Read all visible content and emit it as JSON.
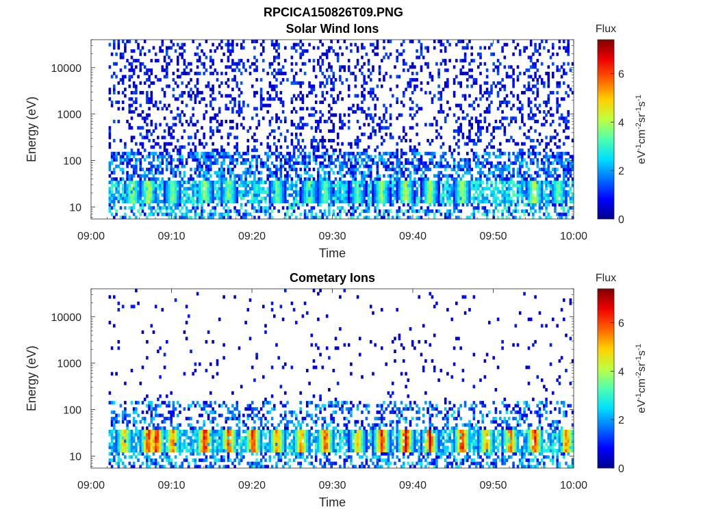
{
  "figure": {
    "title": "RPCICA150826T09.PNG"
  },
  "colors": {
    "colormap": [
      "#00008f",
      "#0000ff",
      "#0070ff",
      "#00dfff",
      "#50ffaf",
      "#bfff40",
      "#ffcf00",
      "#ff6000",
      "#ef0000",
      "#800000"
    ],
    "axis": "#262626",
    "background": "#ffffff"
  },
  "chart_data": [
    {
      "type": "heatmap",
      "title": "Solar Wind Ions",
      "xlabel": "Time",
      "ylabel": "Energy (eV)",
      "xticks": [
        "09:00",
        "09:10",
        "09:20",
        "09:30",
        "09:40",
        "09:50",
        "10:00"
      ],
      "xlim": [
        "09:00",
        "10:00"
      ],
      "yscale": "log",
      "ylim": [
        5.5,
        40000
      ],
      "yticks": [
        10,
        100,
        1000,
        10000
      ],
      "ytick_labels": [
        "10",
        "100",
        "1000",
        "10000"
      ],
      "colorbar": {
        "label_top": "Flux",
        "label_side": "eV-1cm-2sr-1s-1",
        "range": [
          0,
          7.4
        ],
        "ticks": [
          0,
          2,
          4,
          6
        ],
        "tick_labels": [
          "0",
          "2",
          "4",
          "6"
        ]
      },
      "data_start": "09:02",
      "dominant_band_eV": [
        12,
        40
      ],
      "peak_flux": 5,
      "bursts": [
        {
          "time": "09:05",
          "flux": 4.3
        },
        {
          "time": "09:07",
          "flux": 4.8
        },
        {
          "time": "09:10",
          "flux": 4.0
        },
        {
          "time": "09:14",
          "flux": 4.5
        },
        {
          "time": "09:17",
          "flux": 4.2
        },
        {
          "time": "09:23",
          "flux": 3.8
        },
        {
          "time": "09:27",
          "flux": 4.0
        },
        {
          "time": "09:29",
          "flux": 3.7
        },
        {
          "time": "09:33",
          "flux": 3.6
        },
        {
          "time": "09:36",
          "flux": 4.2
        },
        {
          "time": "09:39",
          "flux": 4.6
        },
        {
          "time": "09:42",
          "flux": 4.4
        },
        {
          "time": "09:46",
          "flux": 4.5
        },
        {
          "time": "09:55",
          "flux": 4.8
        },
        {
          "time": "09:58",
          "flux": 3.9
        }
      ]
    },
    {
      "type": "heatmap",
      "title": "Cometary Ions",
      "xlabel": "Time",
      "ylabel": "Energy (eV)",
      "xticks": [
        "09:00",
        "09:10",
        "09:20",
        "09:30",
        "09:40",
        "09:50",
        "10:00"
      ],
      "xlim": [
        "09:00",
        "10:00"
      ],
      "yscale": "log",
      "ylim": [
        5.5,
        40000
      ],
      "yticks": [
        10,
        100,
        1000,
        10000
      ],
      "ytick_labels": [
        "10",
        "100",
        "1000",
        "10000"
      ],
      "colorbar": {
        "label_top": "Flux",
        "label_side": "eV-1cm-2sr-1s-1",
        "range": [
          0,
          7.4
        ],
        "ticks": [
          0,
          2,
          4,
          6
        ],
        "tick_labels": [
          "0",
          "2",
          "4",
          "6"
        ]
      },
      "data_start": "09:02",
      "dominant_band_eV": [
        12,
        40
      ],
      "peak_flux": 7,
      "bursts": [
        {
          "time": "09:04",
          "flux": 5.5
        },
        {
          "time": "09:07",
          "flux": 6.6
        },
        {
          "time": "09:08",
          "flux": 6.8
        },
        {
          "time": "09:10",
          "flux": 6.0
        },
        {
          "time": "09:14",
          "flux": 7.0
        },
        {
          "time": "09:17",
          "flux": 6.5
        },
        {
          "time": "09:20",
          "flux": 6.8
        },
        {
          "time": "09:23",
          "flux": 6.0
        },
        {
          "time": "09:26",
          "flux": 5.8
        },
        {
          "time": "09:29",
          "flux": 6.5
        },
        {
          "time": "09:33",
          "flux": 5.5
        },
        {
          "time": "09:36",
          "flux": 6.8
        },
        {
          "time": "09:39",
          "flux": 7.0
        },
        {
          "time": "09:42",
          "flux": 6.8
        },
        {
          "time": "09:46",
          "flux": 6.9
        },
        {
          "time": "09:49",
          "flux": 5.5
        },
        {
          "time": "09:52",
          "flux": 6.0
        },
        {
          "time": "09:55",
          "flux": 6.8
        },
        {
          "time": "09:59",
          "flux": 6.0
        }
      ]
    }
  ]
}
